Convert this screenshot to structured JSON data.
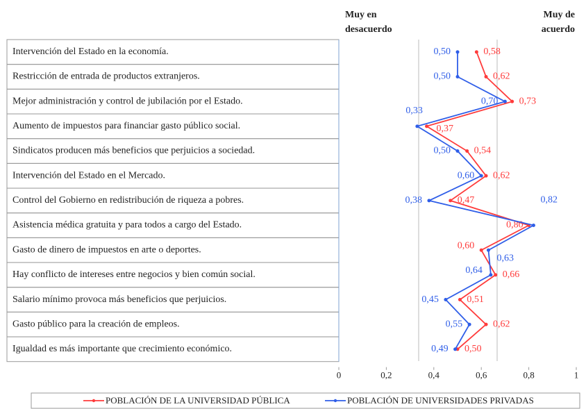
{
  "chart_data": {
    "type": "line",
    "left_label": [
      "Muy en",
      "desacuerdo"
    ],
    "right_label": [
      "Muy de",
      "acuerdo"
    ],
    "categories": [
      "Intervención del Estado en la economía.",
      "Restricción de entrada de productos extranjeros.",
      "Mejor administración y control de jubilación por el Estado.",
      "Aumento de impuestos para financiar gasto público social.",
      "Sindicatos producen más beneficios que perjuicios a sociedad.",
      "Intervención del Estado en el Mercado.",
      "Control del Gobierno en redistribución de riqueza a pobres.",
      "Asistencia médica gratuita y para todos a cargo del Estado.",
      "Gasto de dinero de impuestos en arte o deportes.",
      "Hay conflicto de intereses entre negocios y bien común social.",
      "Salario mínimo provoca más beneficios que perjuicios.",
      "Gasto público para la creación de empleos.",
      "Igualdad es más importante que crecimiento económico."
    ],
    "series": [
      {
        "name": "POBLACIÓN DE LA UNIVERSIDAD PÚBLICA",
        "color": "#ff3b3b",
        "values": [
          0.58,
          0.62,
          0.73,
          0.37,
          0.54,
          0.62,
          0.47,
          0.8,
          0.6,
          0.66,
          0.51,
          0.62,
          0.5
        ],
        "value_labels": [
          "0,58",
          "0,62",
          "0,73",
          "0,37",
          "0,54",
          "0,62",
          "0,47",
          "0,80",
          "0,60",
          "0,66",
          "0,51",
          "0,62",
          "0,50"
        ]
      },
      {
        "name": "POBLACIÓN DE UNIVERSIDADES PRIVADAS",
        "color": "#2f5ee8",
        "values": [
          0.5,
          0.5,
          0.7,
          0.33,
          0.5,
          0.6,
          0.38,
          0.82,
          0.63,
          0.64,
          0.45,
          0.55,
          0.49
        ],
        "value_labels": [
          "0,50",
          "0,50",
          "0,70",
          "0,33",
          "0,50",
          "0,60",
          "0,38",
          "0,82",
          "0,63",
          "0,64",
          "0,45",
          "0,55",
          "0,49"
        ]
      }
    ],
    "xlim": [
      0,
      1
    ],
    "xticks": [
      0,
      {
        "value": 0.2,
        "label": "0,2"
      },
      {
        "value": 0.4,
        "label": "0,4"
      },
      {
        "value": 0.6,
        "label": "0,6"
      },
      {
        "value": 0.8,
        "label": "0,8"
      },
      1
    ]
  }
}
